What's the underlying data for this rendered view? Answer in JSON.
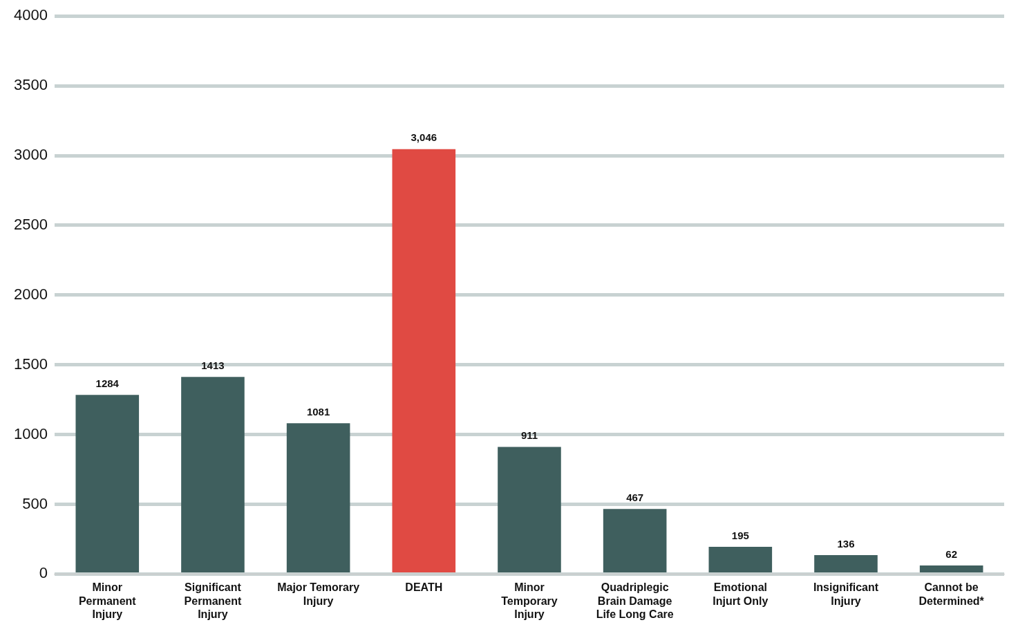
{
  "chart_data": {
    "type": "bar",
    "categories": [
      "Minor Permanent Injury",
      "Significant Permanent Injury",
      "Major Temorary Injury",
      "DEATH",
      "Minor Temporary Injury",
      "Quadriplegic Brain Damage Life Long Care",
      "Emotional Injurt Only",
      "Insignificant Injury",
      "Cannot be Determined*"
    ],
    "values": [
      1284,
      1413,
      1081,
      3046,
      911,
      467,
      195,
      136,
      62
    ],
    "colors": [
      "#3f5f5e",
      "#3f5f5e",
      "#3f5f5e",
      "#e04a43",
      "#3f5f5e",
      "#3f5f5e",
      "#3f5f5e",
      "#3f5f5e",
      "#3f5f5e"
    ],
    "value_labels": [
      "1284",
      "1413",
      "1081",
      "3,046",
      "911",
      "467",
      "195",
      "136",
      "62"
    ],
    "ylim": [
      0,
      4000
    ],
    "yticks": [
      0,
      500,
      1000,
      1500,
      2000,
      2500,
      3000,
      3500,
      4000
    ],
    "grid": "y",
    "legend": false
  }
}
